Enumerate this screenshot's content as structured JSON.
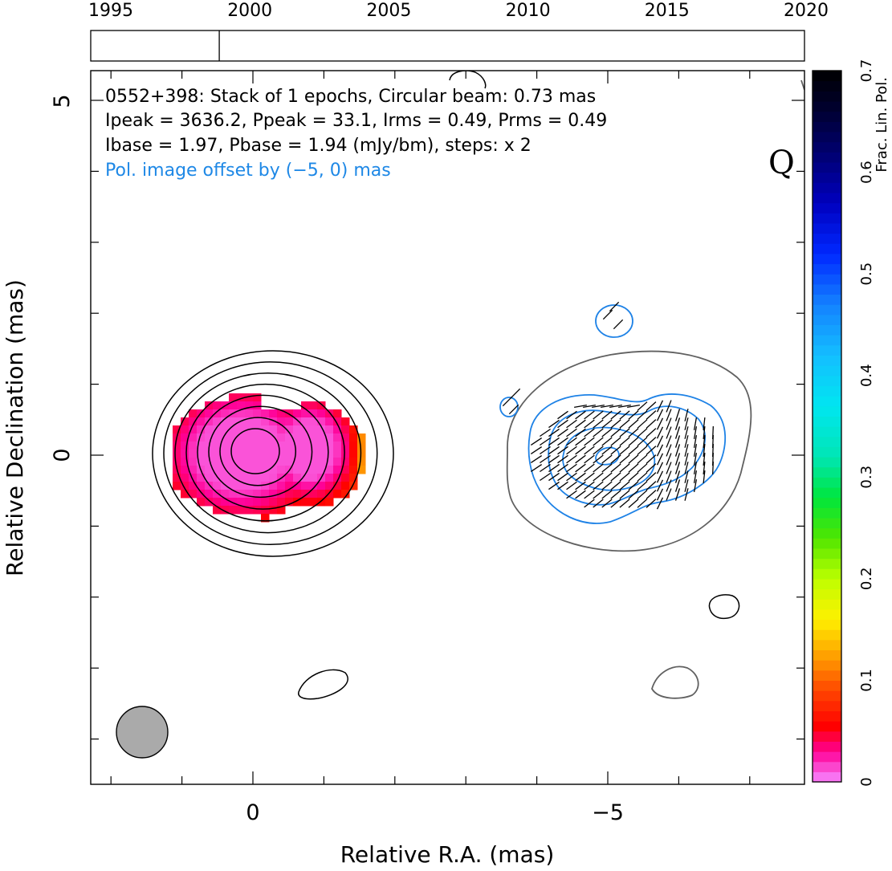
{
  "chart_data": {
    "type": "heatmap",
    "panel_label": "Q",
    "timeline": {
      "ticks": [
        "1995",
        "2000",
        "2005",
        "2010",
        "2015",
        "2020"
      ],
      "range": [
        1995,
        2020
      ],
      "epoch_marker": 1998.9
    },
    "header_lines": [
      "0552+398: Stack of 1 epochs, Circular beam: 0.73 mas",
      "Ipeak = 3636.2, Ppeak = 33.1, Irms = 0.49, Prms = 0.49",
      "Ibase = 1.97, Pbase = 1.94 (mJy/bm), steps: x 2"
    ],
    "offset_note": "Pol. image offset by (−5, 0) mas",
    "xlabel": "Relative R.A. (mas)",
    "ylabel": "Relative Declination (mas)",
    "x_ticks": [
      "0",
      "−5"
    ],
    "y_ticks": [
      "5",
      "0"
    ],
    "xlim": [
      2.3,
      -7.8
    ],
    "ylim": [
      -4.7,
      5.5
    ],
    "beam_diameter_mas": 0.73,
    "colorbar": {
      "label": "Frac. Lin. Pol.",
      "range": [
        0,
        0.7
      ],
      "ticks": [
        "0",
        "0.1",
        "0.2",
        "0.3",
        "0.4",
        "0.5",
        "0.6",
        "0.7"
      ]
    },
    "stokes_i_contour_levels": 8,
    "pol_contour_levels": 3,
    "colors": {
      "stokes_i_contour": "#000000",
      "pol_contour": "#1e82e6",
      "pol_outer_contour": "#606060",
      "evpa": "#000000",
      "beam": "#aaaaaa",
      "offset_note": "#1e88e6"
    }
  }
}
